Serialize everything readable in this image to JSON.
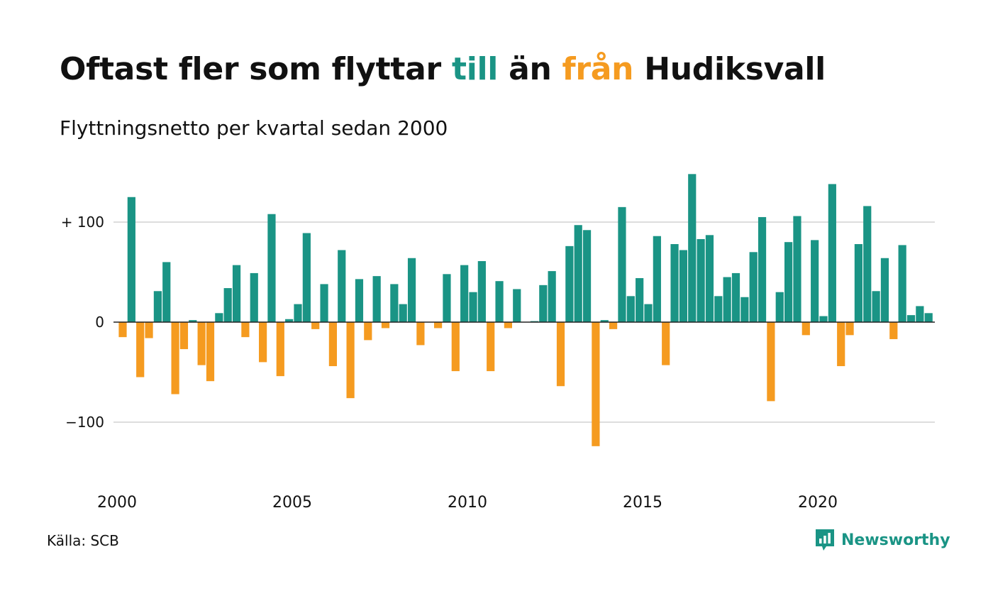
{
  "title": {
    "part1": "Oftast fler som flyttar ",
    "highlight_till": "till",
    "part2": " än ",
    "highlight_fran": "från",
    "part3": " Hudiksvall"
  },
  "subtitle": "Flyttningsnetto per kvartal sedan 2000",
  "source": "Källa: SCB",
  "logo_text": "Newsworthy",
  "colors": {
    "positive": "#1a9485",
    "negative": "#f59b20",
    "grid": "#dddddd",
    "text": "#111111"
  },
  "chart_data": {
    "type": "bar",
    "title": "Oftast fler som flyttar till än från Hudiksvall",
    "subtitle": "Flyttningsnetto per kvartal sedan 2000",
    "x_start": "2000 Q1",
    "x_ticks": [
      "2000",
      "2005",
      "2010",
      "2015",
      "2020"
    ],
    "y_ticks": [
      {
        "value": 100,
        "label": "+ 100"
      },
      {
        "value": 0,
        "label": "0"
      },
      {
        "value": -100,
        "label": "−100"
      }
    ],
    "ylim": [
      -150,
      150
    ],
    "grid": true,
    "values": [
      -15,
      125,
      -55,
      -16,
      31,
      60,
      -72,
      -27,
      2,
      -43,
      -59,
      9,
      34,
      57,
      -15,
      49,
      -40,
      108,
      -54,
      3,
      18,
      89,
      -7,
      38,
      -44,
      72,
      -76,
      43,
      -18,
      46,
      -6,
      38,
      18,
      64,
      -23,
      0,
      -6,
      48,
      -49,
      57,
      30,
      61,
      -49,
      41,
      -6,
      33,
      0,
      1,
      37,
      51,
      -64,
      76,
      97,
      92,
      -124,
      2,
      -7,
      115,
      26,
      44,
      18,
      86,
      -43,
      78,
      72,
      148,
      83,
      87,
      26,
      45,
      49,
      25,
      70,
      105,
      -79,
      30,
      80,
      106,
      -13,
      82,
      6,
      138,
      -44,
      -13,
      78,
      116,
      31,
      64,
      -17,
      77,
      7,
      16,
      9
    ]
  }
}
